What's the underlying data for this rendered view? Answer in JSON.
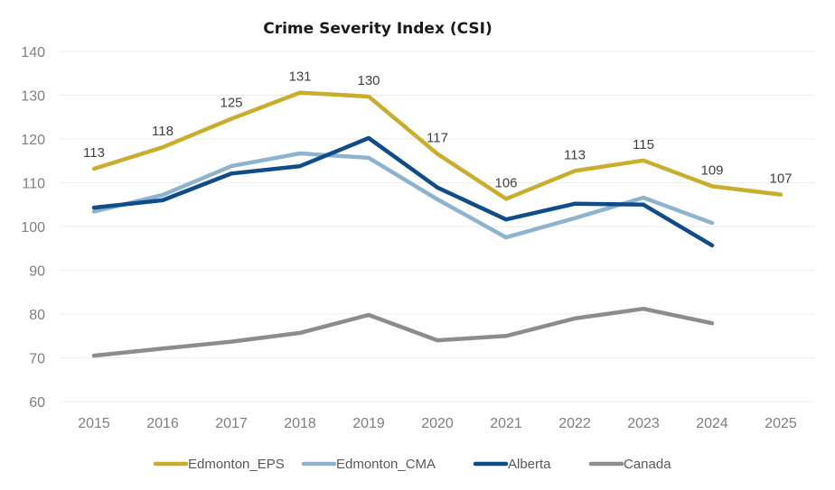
{
  "chart_data": {
    "type": "line",
    "title": "Crime Severity Index (CSI)",
    "xlabel": "",
    "ylabel": "",
    "ylim": [
      60,
      140
    ],
    "yticks": [
      60,
      70,
      80,
      90,
      100,
      110,
      120,
      130,
      140
    ],
    "grid": true,
    "legend_position": "bottom",
    "categories": [
      "2015",
      "2016",
      "2017",
      "2018",
      "2019",
      "2020",
      "2021",
      "2022",
      "2023",
      "2024",
      "2025"
    ],
    "series": [
      {
        "name": "Edmonton_EPS",
        "color": "#C9AE2E",
        "values": [
          113.2,
          118.1,
          124.6,
          130.6,
          129.7,
          116.6,
          106.3,
          112.7,
          115.1,
          109.2,
          107.3
        ],
        "data_labels": [
          "113",
          "118",
          "125",
          "131",
          "130",
          "117",
          "106",
          "113",
          "115",
          "109",
          "107"
        ]
      },
      {
        "name": "Edmonton_CMA",
        "color": "#8DB3CF",
        "values": [
          103.4,
          107.2,
          113.8,
          116.7,
          115.7,
          106.2,
          97.5,
          101.9,
          106.6,
          100.8,
          null
        ]
      },
      {
        "name": "Alberta",
        "color": "#0F4C8A",
        "values": [
          104.3,
          106.0,
          112.1,
          113.8,
          120.2,
          108.9,
          101.6,
          105.2,
          105.0,
          95.7,
          null
        ]
      },
      {
        "name": "Canada",
        "color": "#8C8C8C",
        "values": [
          70.5,
          72.1,
          73.7,
          75.7,
          79.8,
          74.0,
          75.0,
          79.0,
          81.2,
          77.9,
          null
        ]
      }
    ]
  }
}
